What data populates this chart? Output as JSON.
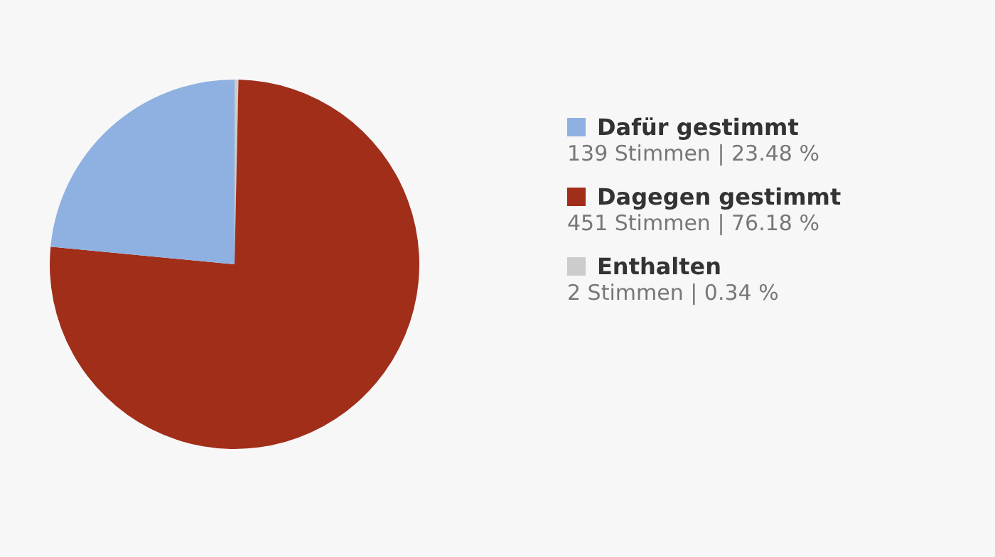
{
  "chart_data": {
    "type": "pie",
    "categories": [
      "Dafür gestimmt",
      "Dagegen gestimmt",
      "Enthalten"
    ],
    "values": [
      139,
      451,
      2
    ],
    "colors": [
      "#8fb1e1",
      "#a02e19",
      "#cccccc"
    ],
    "value_labels": [
      "139 Stimmen | 23.48 %",
      "451 Stimmen | 76.18 %",
      "2 Stimmen | 0.34 %"
    ],
    "legend": "right"
  }
}
